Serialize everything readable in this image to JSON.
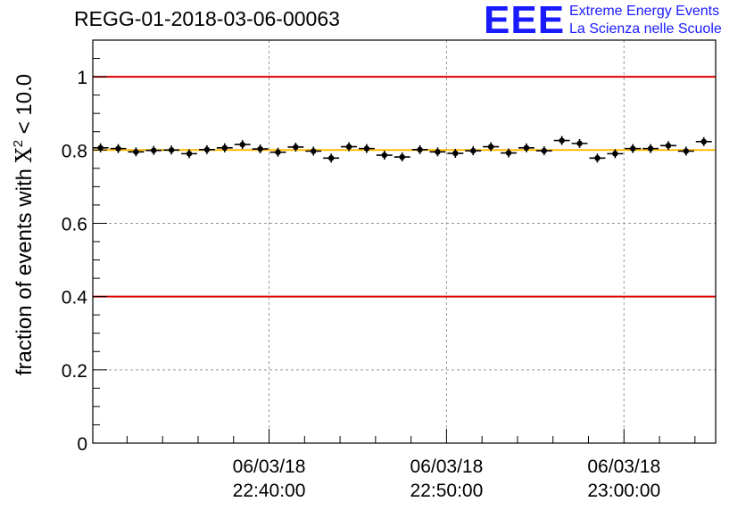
{
  "header": {
    "run_title": "REGG-01-2018-03-06-00063",
    "logo_mark": "EEE",
    "logo_line1": "Extreme Energy Events",
    "logo_line2": "La Scienza nelle Scuole"
  },
  "colors": {
    "threshold_lines": "#dd0000",
    "mean_line": "#ffbb00",
    "grid": "#999999",
    "markers": "#000000",
    "logo": "#1a1aff"
  },
  "chart_data": {
    "type": "scatter",
    "title": "REGG-01-2018-03-06-00063",
    "xlabel": "",
    "ylabel_prefix": "fraction of events with ",
    "ylabel_symbol": "X",
    "ylabel_sup": "2",
    "ylabel_suffix": " < 10.0",
    "ylim": [
      0,
      1.1
    ],
    "yticks": [
      0,
      0.2,
      0.4,
      0.6,
      0.8,
      1
    ],
    "ytick_labels": [
      "0",
      "0.2",
      "0.4",
      "0.6",
      "0.8",
      "1"
    ],
    "xlim": [
      "22:30:04",
      "23:05:10"
    ],
    "xticks": [
      {
        "time": "22:40:00",
        "date": "06/03/18"
      },
      {
        "time": "22:50:00",
        "date": "06/03/18"
      },
      {
        "time": "23:00:00",
        "date": "06/03/18"
      }
    ],
    "grid": true,
    "horizontal_lines": [
      {
        "y": 1.0,
        "color": "#dd0000"
      },
      {
        "y": 0.4,
        "color": "#dd0000"
      },
      {
        "y": 0.8,
        "color": "#ffbb00"
      }
    ],
    "bin_width_s": 60,
    "x": [
      "22:30:30",
      "22:31:30",
      "22:32:30",
      "22:33:30",
      "22:34:30",
      "22:35:30",
      "22:36:30",
      "22:37:30",
      "22:38:30",
      "22:39:30",
      "22:40:30",
      "22:41:30",
      "22:42:30",
      "22:43:30",
      "22:44:30",
      "22:45:30",
      "22:46:30",
      "22:47:30",
      "22:48:30",
      "22:49:30",
      "22:50:30",
      "22:51:30",
      "22:52:30",
      "22:53:30",
      "22:54:30",
      "22:55:30",
      "22:56:30",
      "22:57:30",
      "22:58:30",
      "22:59:30",
      "23:00:30",
      "23:01:30",
      "23:02:30",
      "23:03:30",
      "23:04:30"
    ],
    "y": [
      0.806,
      0.804,
      0.795,
      0.799,
      0.8,
      0.79,
      0.801,
      0.806,
      0.815,
      0.803,
      0.794,
      0.808,
      0.797,
      0.778,
      0.809,
      0.804,
      0.786,
      0.781,
      0.801,
      0.795,
      0.791,
      0.798,
      0.809,
      0.792,
      0.806,
      0.798,
      0.826,
      0.818,
      0.778,
      0.79,
      0.804,
      0.804,
      0.812,
      0.797,
      0.823
    ]
  }
}
